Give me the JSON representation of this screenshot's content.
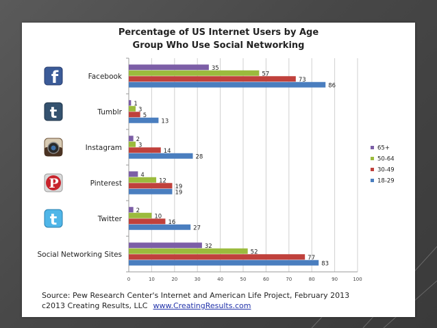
{
  "slide": {
    "source_line": "Source: Pew Research Center's Internet and American Life Project, February 2013",
    "copyright": "c2013 Creating Results, LLC",
    "link": "www.CreatingResults.com"
  },
  "chart_data": {
    "type": "bar",
    "orientation": "horizontal",
    "title": "Percentage of US Internet Users by Age Group Who Use Social Networking",
    "title_lines": [
      "Percentage of US Internet Users by Age",
      "Group Who Use Social Networking"
    ],
    "categories": [
      "Facebook",
      "Tumblr",
      "Instagram",
      "Pinterest",
      "Twitter",
      "Social Networking Sites"
    ],
    "category_icons": [
      "facebook-icon",
      "tumblr-icon",
      "instagram-icon",
      "pinterest-icon",
      "twitter-icon",
      ""
    ],
    "series": [
      {
        "name": "65+",
        "color": "#7c5ea6",
        "values": [
          35,
          1,
          2,
          4,
          2,
          32
        ]
      },
      {
        "name": "50-64",
        "color": "#9bbb3d",
        "values": [
          57,
          3,
          3,
          12,
          10,
          52
        ]
      },
      {
        "name": "30-49",
        "color": "#c0413c",
        "values": [
          73,
          5,
          14,
          19,
          16,
          77
        ]
      },
      {
        "name": "18-29",
        "color": "#4a7ebf",
        "values": [
          86,
          13,
          28,
          19,
          27,
          83
        ]
      }
    ],
    "xlim": [
      0,
      100
    ],
    "xticks": [
      0,
      10,
      20,
      30,
      40,
      50,
      60,
      70,
      80,
      90,
      100
    ],
    "grid": true,
    "data_labels": true,
    "legend_position": "right"
  }
}
